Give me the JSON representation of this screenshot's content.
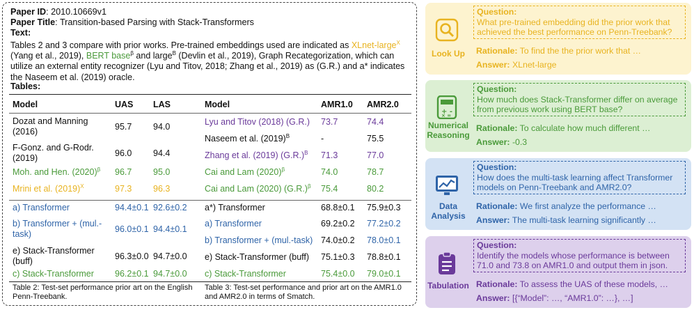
{
  "paper": {
    "id_label": "Paper ID",
    "id_value": "2010.10669v1",
    "title_label": "Paper Title",
    "title_value": "Transition-based Parsing with Stack-Transformers",
    "text_label": "Text:",
    "text_p1": "Tables 2 and 3 compare with prior works. Pre-trained embeddings used are indicated as ",
    "xlnet": "XLnet-large",
    "xlnet_sup": "X",
    "text_p2": " (Yang et al., 2019), ",
    "bert": "BERT base",
    "bert_sup": "β",
    "text_p3": " and large",
    "large_sup": "B",
    "text_p4": " (Devlin et al., 2019), Graph Recategorization, which can utilize an external entity recognizer (Lyu and Titov, 2018; Zhang et al., 2019) as (G.R.) and a* indicates the Naseem et al. (2019) oracle.",
    "tables_label": "Tables:"
  },
  "table2": {
    "headers": [
      "Model",
      "UAS",
      "LAS"
    ],
    "rows": [
      {
        "model": "Dozat and Manning (2016)",
        "uas": "95.7",
        "las": "94.0",
        "color": "#111111"
      },
      {
        "model": "F-Gonz. and G-Rodr. (2019)",
        "uas": "96.0",
        "las": "94.4",
        "color": "#111111"
      },
      {
        "model": "Moh. and Hen. (2020)",
        "sup": "β",
        "uas": "96.7",
        "las": "95.0",
        "color": "#4a9a3a"
      },
      {
        "model": "Mrini et al. (2019)",
        "sup": "X",
        "uas": "97.3",
        "las": "96.3",
        "color": "#e8b320"
      },
      {
        "model": "a) Transformer",
        "uas": "94.4±0.1",
        "las": "92.6±0.2",
        "color": "#2f64a8"
      },
      {
        "model": "b) Transformer + (mul.-task)",
        "uas": "96.0±0.1",
        "las": "94.4±0.1",
        "color": "#2f64a8"
      },
      {
        "model": "e) Stack-Transformer (buff)",
        "uas": "96.3±0.0",
        "las": "94.7±0.0",
        "color": "#111111"
      },
      {
        "model": "c) Stack-Transformer",
        "uas": "96.2±0.1",
        "las": "94.7±0.0",
        "color": "#4a9a3a"
      }
    ],
    "caption": "Table 2: Test-set performance prior art on the English Penn-Treebank."
  },
  "table3": {
    "headers": [
      "Model",
      "AMR1.0",
      "AMR2.0"
    ],
    "rows": [
      {
        "model": "Lyu and Titov (2018) (G.R.)",
        "a1": "73.7",
        "a2": "74.4",
        "color": "#6a3a9a",
        "a1color": "#6a3a9a"
      },
      {
        "model": "Naseem et al. (2019)",
        "sup": "B",
        "a1": "-",
        "a2": "75.5",
        "color": "#111111",
        "a1color": "#111111"
      },
      {
        "model": "Zhang et al. (2019) (G.R.)",
        "sup": "B",
        "a1": "71.3",
        "a2": "77.0",
        "color": "#6a3a9a",
        "a1color": "#6a3a9a"
      },
      {
        "model": "Cai and Lam (2020)",
        "sup": "β",
        "a1": "74.0",
        "a2": "78.7",
        "color": "#4a9a3a",
        "a1color": "#4a9a3a"
      },
      {
        "model": "Cai and Lam (2020) (G.R.)",
        "sup": "β",
        "a1": "75.4",
        "a2": "80.2",
        "color": "#4a9a3a",
        "a1color": "#4a9a3a"
      },
      {
        "model": "a*) Transformer",
        "a1": "68.8±0.1",
        "a2": "75.9±0.3",
        "color": "#111111",
        "a1color": "#111111"
      },
      {
        "model": "a) Transformer",
        "a1": "69.2±0.2",
        "a2": "77.2±0.2",
        "color": "#2f64a8",
        "a1color": "#111111"
      },
      {
        "model": "b) Transformer + (mul.-task)",
        "a1": "74.0±0.2",
        "a2": "78.0±0.1",
        "color": "#2f64a8",
        "a1color": "#111111"
      },
      {
        "model": "e) Stack-Transformer (buff)",
        "a1": "75.1±0.3",
        "a2": "78.8±0.1",
        "color": "#111111",
        "a1color": "#111111"
      },
      {
        "model": "c) Stack-Transformer",
        "a1": "75.4±0.0",
        "a2": "79.0±0.1",
        "color": "#4a9a3a",
        "a1color": "#4a9a3a"
      }
    ],
    "caption": "Table 3: Test-set performance and prior art on the AMR1.0 and AMR2.0 in terms of Smatch."
  },
  "cards": [
    {
      "label": "Look Up",
      "icon": "magnifier-icon",
      "bg": "#fdf3cf",
      "accent": "#e8b320",
      "question_label": "Question:",
      "question": "What pre-trained embedding did the prior work that achieved the best performance on Penn-Treebank?",
      "rationale_label": "Rationale:",
      "rationale": "To find the the prior work that …",
      "answer_label": "Answer:",
      "answer": "XLnet-large"
    },
    {
      "label": "Numerical Reasoning",
      "icon": "calculator-icon",
      "bg": "#dcefd3",
      "accent": "#4a9a3a",
      "question_label": "Question:",
      "question": "How much does Stack-Transformer differ on average from previous work using BERT base?",
      "rationale_label": "Rationale:",
      "rationale": "To calculate how much different …",
      "answer_label": "Answer:",
      "answer": "-0.3"
    },
    {
      "label": "Data Analysis",
      "icon": "chart-monitor-icon",
      "bg": "#d3e2f4",
      "accent": "#2f64a8",
      "question_label": "Question:",
      "question": "How does the multi-task learning affect Transformer models on Penn-Treebank and AMR2.0?",
      "rationale_label": "Rationale:",
      "rationale": "We first analyze the performance …",
      "answer_label": "Answer:",
      "answer": "The multi-task learning significantly …"
    },
    {
      "label": "Tabulation",
      "icon": "clipboard-icon",
      "bg": "#ddd0ec",
      "accent": "#6a3a9a",
      "question_label": "Question:",
      "question": "Identify the models whose performance is between 71.0 and 73.8 on AMR1.0 and output them in json.",
      "rationale_label": "Rationale:",
      "rationale": "To assess the UAS of these models, …",
      "answer_label": "Answer:",
      "answer": "[{“Model”: …, “AMR1.0”: …}, …]"
    }
  ]
}
